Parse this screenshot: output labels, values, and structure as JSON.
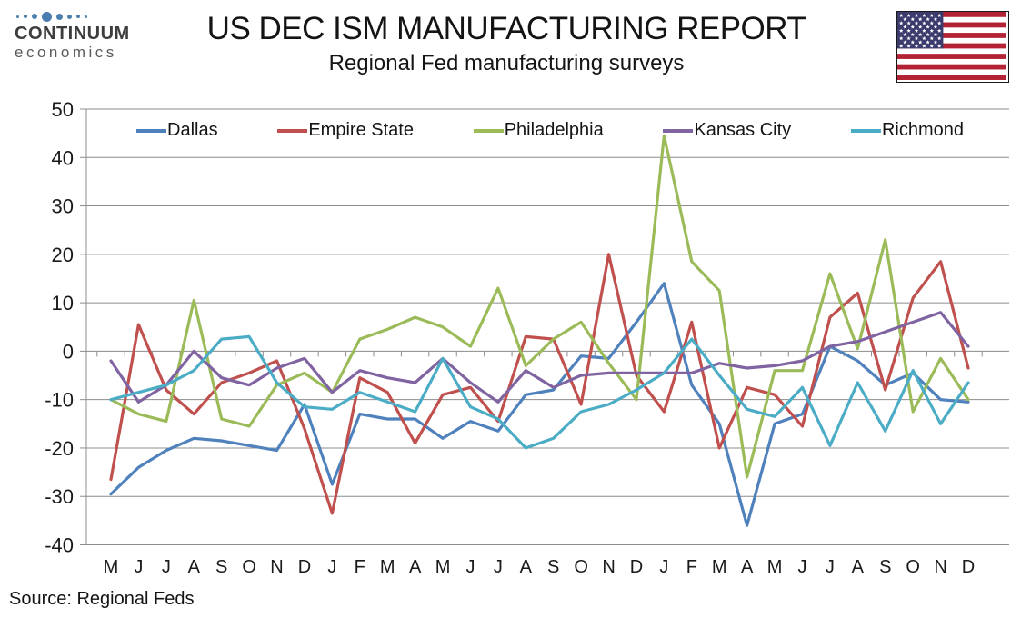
{
  "header": {
    "logo": {
      "line1": "CONTINUUM",
      "line2": "economics"
    },
    "title": "US DEC ISM MANUFACTURING REPORT",
    "subtitle": "Regional Fed manufacturing surveys",
    "flag_icon": "us-flag"
  },
  "source": "Source: Regional Feds",
  "colors": {
    "grid": "#8c8c8c",
    "axis_text": "#1a1a1a",
    "logo_blue": "#4a7eae",
    "flag_red": "#b22234",
    "flag_blue": "#3c3b6e"
  },
  "chart_data": {
    "type": "line",
    "title": "US DEC ISM MANUFACTURING REPORT",
    "subtitle": "Regional Fed manufacturing surveys",
    "xlabel": "",
    "ylabel": "",
    "ylim": [
      -40,
      50
    ],
    "ytick_step": 10,
    "grid": true,
    "legend_position": "top-inside",
    "categories": [
      "M",
      "J",
      "J",
      "A",
      "S",
      "O",
      "N",
      "D",
      "J",
      "F",
      "M",
      "A",
      "M",
      "J",
      "J",
      "A",
      "S",
      "O",
      "N",
      "D",
      "J",
      "F",
      "M",
      "A",
      "M",
      "J",
      "J",
      "A",
      "S",
      "O",
      "N",
      "D"
    ],
    "series": [
      {
        "name": "Dallas",
        "color": "#4F81BD",
        "values": [
          -29.5,
          -24,
          -20.5,
          -18,
          -18.5,
          -19.5,
          -20.5,
          -11,
          -27.5,
          -13,
          -14,
          -14,
          -18,
          -14.5,
          -16.5,
          -9,
          -8,
          -1,
          -1.5,
          6,
          14,
          -7,
          -15,
          -36,
          -15,
          -13,
          1,
          -2,
          -7,
          -4.5,
          -10,
          -10.5
        ]
      },
      {
        "name": "Empire State",
        "color": "#C0504D",
        "values": [
          -26.5,
          5.5,
          -8,
          -13,
          -6.5,
          -4.5,
          -2,
          -16,
          -33.5,
          -5.5,
          -8.5,
          -19,
          -9,
          -7.5,
          -14.5,
          3,
          2.5,
          -11,
          20,
          -5,
          -12.5,
          6,
          -20,
          -7.5,
          -9,
          -15.5,
          7,
          12,
          -8,
          11,
          18.5,
          -3.5
        ]
      },
      {
        "name": "Philadelphia",
        "color": "#9BBB59",
        "values": [
          -10,
          -13,
          -14.5,
          10.5,
          -14,
          -15.5,
          -7,
          -4.5,
          -8.5,
          2.5,
          4.5,
          7,
          5,
          1,
          13,
          -3,
          2.5,
          6,
          -2.5,
          -10,
          44.5,
          18.5,
          12.5,
          -26,
          -4,
          -4,
          16,
          0.5,
          23,
          -12.5,
          -1.5,
          -10
        ]
      },
      {
        "name": "Kansas City",
        "color": "#8064A2",
        "values": [
          -2,
          -10.5,
          -7,
          0,
          -5.5,
          -7,
          -3.5,
          -1.5,
          -8.5,
          -4,
          -5.5,
          -6.5,
          -1.5,
          -6.5,
          -10.5,
          -4,
          -7.5,
          -5,
          -4.5,
          -4.5,
          -4.5,
          -4.5,
          -2.5,
          -3.5,
          -3,
          -2,
          1,
          2,
          4,
          6,
          8,
          1
        ]
      },
      {
        "name": "Richmond",
        "color": "#4BACC6",
        "values": [
          -10,
          -8.5,
          -7,
          -4,
          2.5,
          3,
          -6.5,
          -11.5,
          -12,
          -8.5,
          -10.5,
          -12.5,
          -1.5,
          -11.5,
          -14,
          -20,
          -18,
          -12.5,
          -11,
          -8,
          -4.5,
          2.5,
          -5,
          -12,
          -13.5,
          -7.5,
          -19.5,
          -6.5,
          -16.5,
          -4,
          -15,
          -6.5
        ]
      }
    ]
  }
}
